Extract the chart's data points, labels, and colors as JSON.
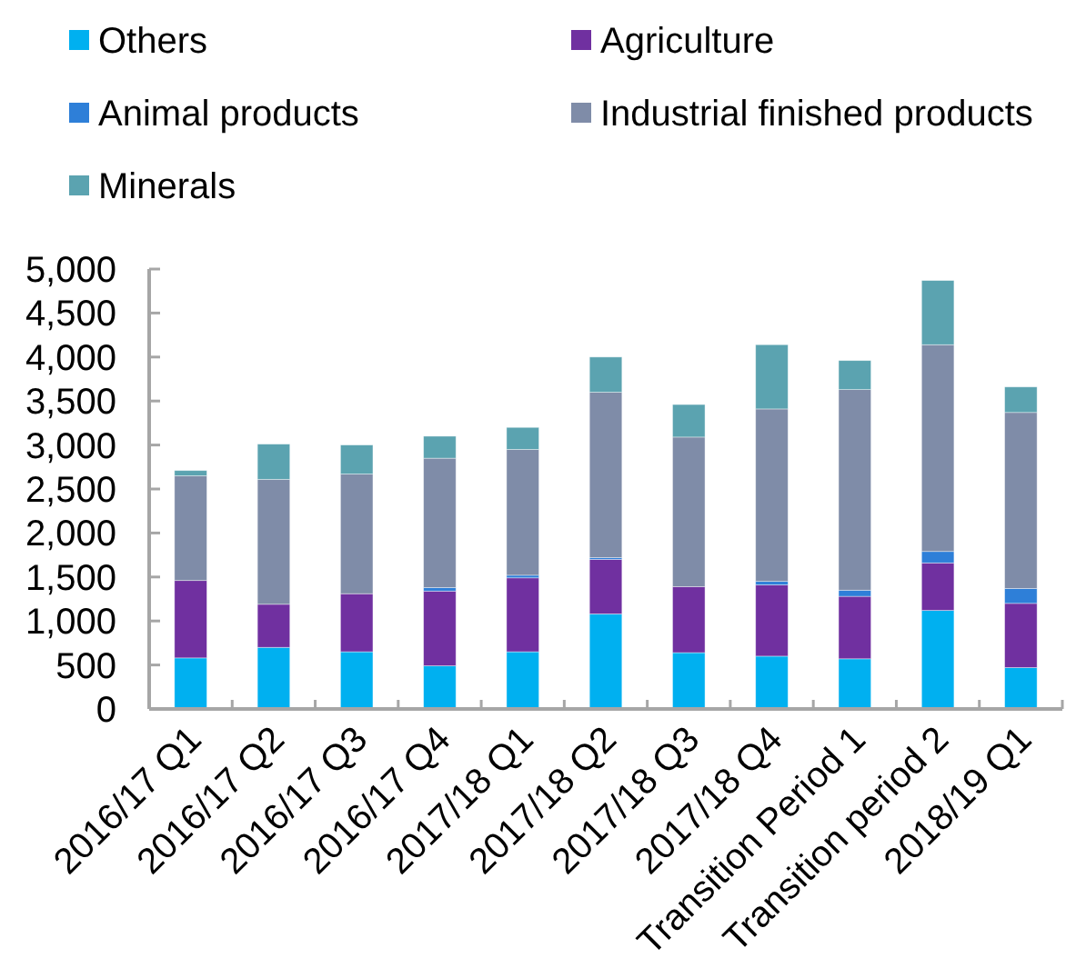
{
  "chart_data": {
    "type": "bar",
    "stacked": true,
    "legend": "top",
    "categories": [
      "2016/17 Q1",
      "2016/17 Q2",
      "2016/17 Q3",
      "2016/17 Q4",
      "2017/18 Q1",
      "2017/18 Q2",
      "2017/18 Q3",
      "2017/18 Q4",
      "Transition Period 1",
      "Transition period 2",
      "2018/19 Q1"
    ],
    "series": [
      {
        "name": "Others",
        "color": "#00b0f0",
        "values": [
          580,
          700,
          650,
          490,
          650,
          1080,
          640,
          600,
          570,
          1120,
          470
        ]
      },
      {
        "name": "Agriculture",
        "color": "#7030a0",
        "values": [
          880,
          490,
          660,
          850,
          840,
          620,
          750,
          810,
          710,
          540,
          730
        ]
      },
      {
        "name": "Animal products",
        "color": "#2e7fd8",
        "values": [
          0,
          0,
          0,
          40,
          30,
          20,
          0,
          40,
          70,
          130,
          170
        ]
      },
      {
        "name": "Industrial finished products",
        "color": "#7f8ca8",
        "values": [
          1190,
          1420,
          1360,
          1470,
          1430,
          1880,
          1700,
          1960,
          2280,
          2350,
          2000
        ]
      },
      {
        "name": "Minerals",
        "color": "#5ba3b0",
        "values": [
          60,
          400,
          330,
          250,
          250,
          400,
          370,
          730,
          330,
          730,
          290
        ]
      }
    ],
    "ylim": [
      0,
      5000
    ],
    "yticks": [
      0,
      500,
      {
        "value": 1000,
        "label": "1,000"
      },
      {
        "value": 1500,
        "label": "1,500"
      },
      {
        "value": 2000,
        "label": "2,000"
      },
      {
        "value": 2500,
        "label": "2,500"
      },
      {
        "value": 3000,
        "label": "3,000"
      },
      {
        "value": 3500,
        "label": "3,500"
      },
      {
        "value": 4000,
        "label": "4,000"
      },
      {
        "value": 4500,
        "label": "4,500"
      },
      {
        "value": 5000,
        "label": "5,000"
      }
    ]
  }
}
